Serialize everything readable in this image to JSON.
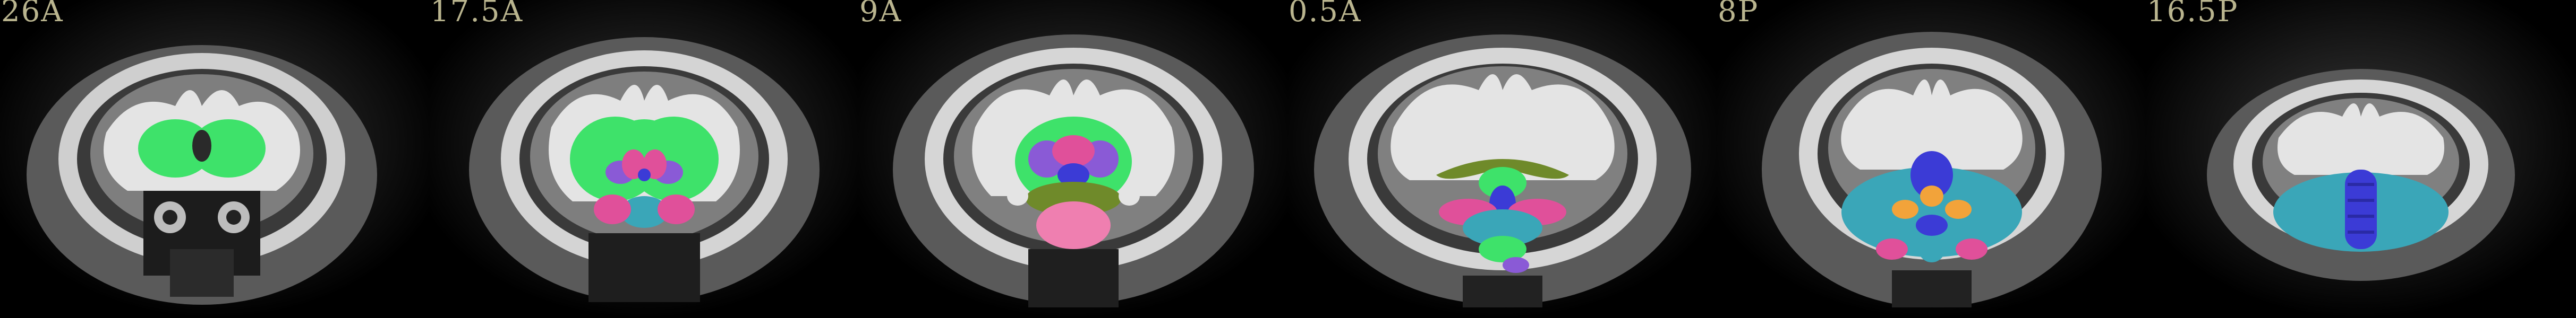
{
  "panels": [
    {
      "label": "26A"
    },
    {
      "label": "17.5A"
    },
    {
      "label": "9A"
    },
    {
      "label": "0.5A"
    },
    {
      "label": "8P"
    },
    {
      "label": "16.5P"
    }
  ],
  "colors": {
    "background": "#000000",
    "label_text": "#b9b48e",
    "white_matter": "#e6e6e6",
    "grey_matter": "#8a8a8a",
    "tissue": "#4a4a4a",
    "green": "#3ee26a",
    "magenta": "#e0509a",
    "blue": "#3b3bd6",
    "cyan": "#3aa6b8",
    "orange": "#f2a33a",
    "olive": "#6f8a2a",
    "purple": "#8a5ad6",
    "pink": "#ef7fb0"
  }
}
